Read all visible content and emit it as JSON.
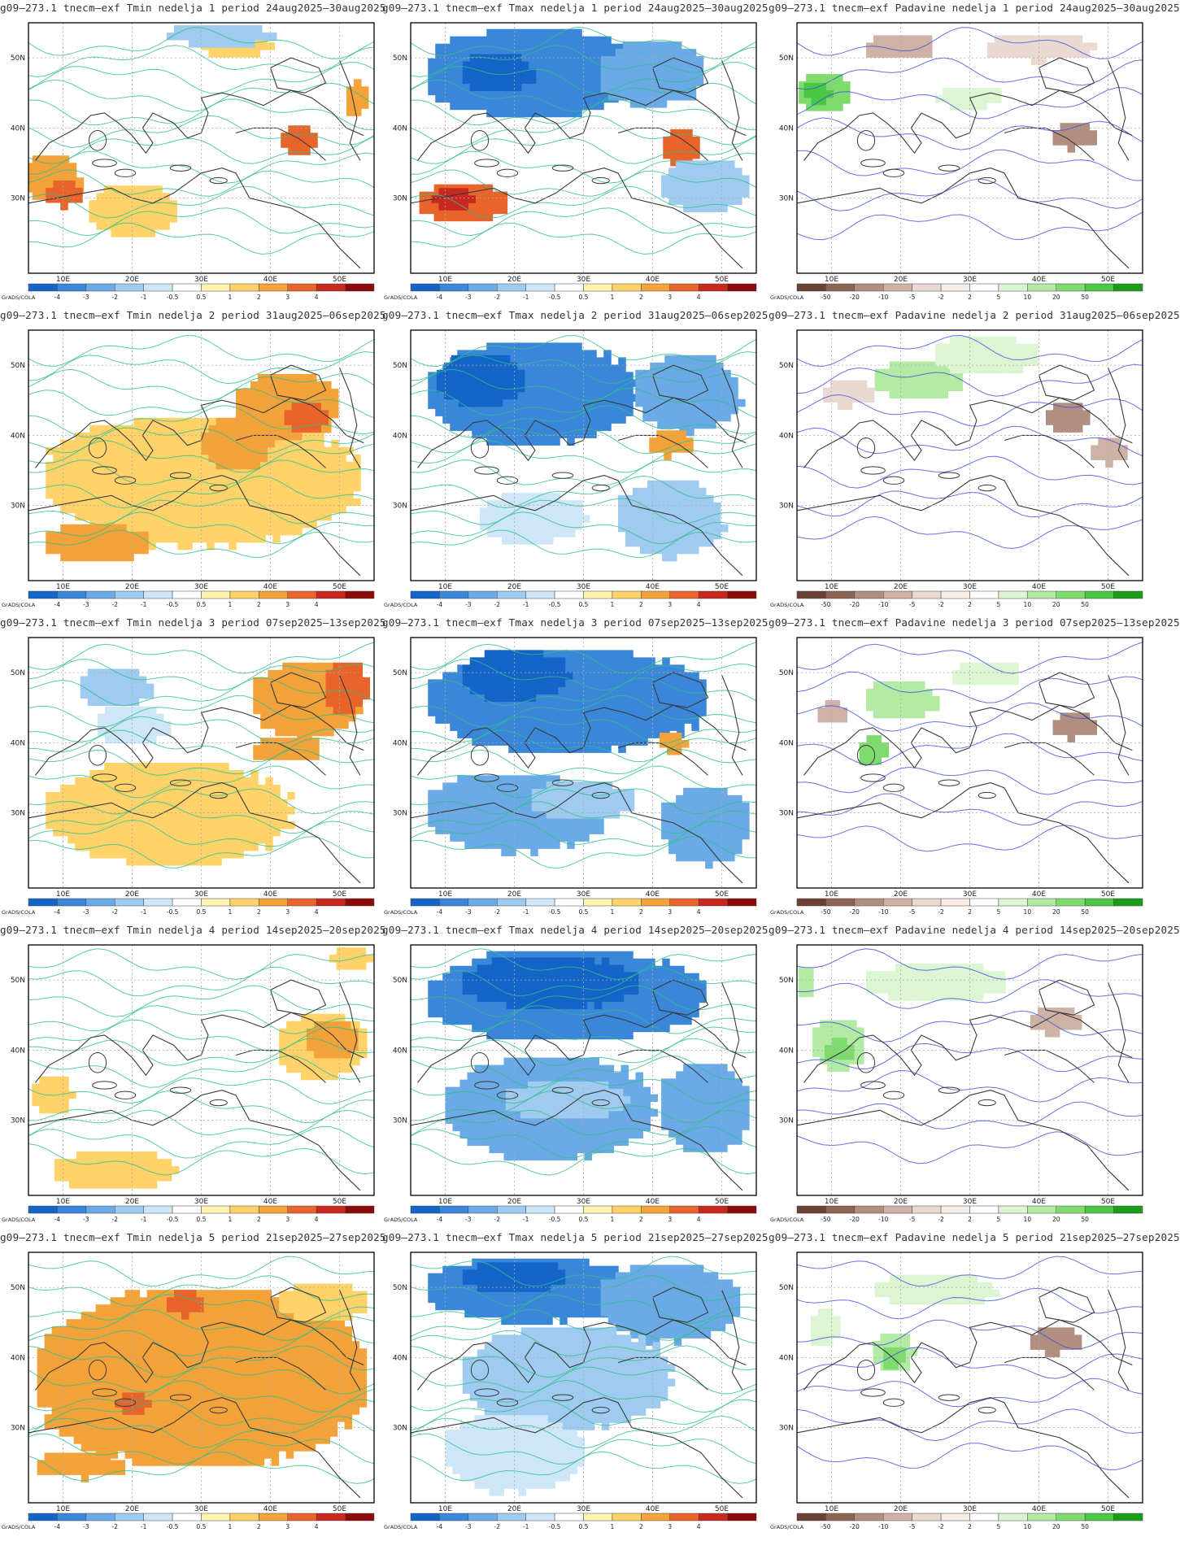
{
  "graphics_label": "GrADS/COLA",
  "lat_labels": [
    "50N",
    "40N",
    "30N"
  ],
  "lon_labels": [
    "10E",
    "20E",
    "30E",
    "40E",
    "50E"
  ],
  "colorbars": {
    "temp": {
      "labels": [
        "-4",
        "-3",
        "-2",
        "-1",
        "-0.5",
        "0.5",
        "1",
        "2",
        "3",
        "4"
      ],
      "colors": [
        "#1565c8",
        "#3a86d9",
        "#6aaae6",
        "#9fcbf0",
        "#cde6f8",
        "#ffffff",
        "#fff3b0",
        "#ffd36a",
        "#f3a33a",
        "#e8642a",
        "#c9281e",
        "#8b0a0a"
      ]
    },
    "precip": {
      "labels": [
        "-50",
        "-20",
        "-10",
        "-5",
        "-2",
        "2",
        "5",
        "10",
        "20",
        "50"
      ],
      "colors": [
        "#6b4234",
        "#8e6453",
        "#b08f80",
        "#cfb2a6",
        "#ead9d0",
        "#f7ede6",
        "#ffffff",
        "#dcf5d3",
        "#b3eaa4",
        "#7fdb6e",
        "#4bc843",
        "#1a9e1a"
      ]
    }
  },
  "rows": [
    {
      "week": "1",
      "period": "24aug2025–30aug2025",
      "titles": [
        "g09–273.1  tnecm–exf  Tmin  nedelja  1  period  24aug2025–30aug2025",
        "g09–273.1  tnecm–exf  Tmax  nedelja  1  period  24aug2025–30aug2025",
        "g09–273.1  tnecm–exf  Padavine  nedelja  1  period  24aug2025–30aug2025"
      ]
    },
    {
      "week": "2",
      "period": "31aug2025–06sep2025",
      "titles": [
        "g09–273.1  tnecm–exf  Tmin  nedelja  2  period  31aug2025–06sep2025",
        "g09–273.1  tnecm–exf  Tmax  nedelja  2  period  31aug2025–06sep2025",
        "g09–273.1  tnecm–exf  Padavine  nedelja  2  period  31aug2025–06sep2025"
      ]
    },
    {
      "week": "3",
      "period": "07sep2025–13sep2025",
      "titles": [
        "g09–273.1  tnecm–exf  Tmin  nedelja  3  period  07sep2025–13sep2025",
        "g09–273.1  tnecm–exf  Tmax  nedelja  3  period  07sep2025–13sep2025",
        "g09–273.1  tnecm–exf  Padavine  nedelja  3  period  07sep2025–13sep2025"
      ]
    },
    {
      "week": "4",
      "period": "14sep2025–20sep2025",
      "titles": [
        "g09–273.1  tnecm–exf  Tmin  nedelja  4  period  14sep2025–20sep2025",
        "g09–273.1  tnecm–exf  Tmax  nedelja  4  period  14sep2025–20sep2025",
        "g09–273.1  tnecm–exf  Padavine  nedelja  4  period  14sep2025–20sep2025"
      ]
    },
    {
      "week": "5",
      "period": "21sep2025–27sep2025",
      "titles": [
        "g09–273.1  tnecm–exf  Tmin  nedelja  5  period  21sep2025–27sep2025",
        "g09–273.1  tnecm–exf  Tmax  nedelja  5  period  21sep2025–27sep2025",
        "g09–273.1  tnecm–exf  Padavine  nedelja  5  period  21sep2025–27sep2025"
      ]
    }
  ],
  "anomaly_blobs": {
    "tmin": [
      [
        [
          "#f3a33a",
          0.07,
          0.62,
          0.16,
          0.18
        ],
        [
          "#e8642a",
          0.1,
          0.68,
          0.1,
          0.1
        ],
        [
          "#ffd36a",
          0.3,
          0.75,
          0.25,
          0.2
        ],
        [
          "#ffd36a",
          0.6,
          0.08,
          0.2,
          0.12
        ],
        [
          "#e8642a",
          0.78,
          0.47,
          0.1,
          0.12
        ],
        [
          "#f3a33a",
          0.95,
          0.3,
          0.06,
          0.15
        ],
        [
          "#9fcbf0",
          0.55,
          0.05,
          0.3,
          0.08
        ]
      ],
      [
        [
          "#ffd36a",
          0.5,
          0.6,
          0.9,
          0.5
        ],
        [
          "#f3a33a",
          0.75,
          0.3,
          0.3,
          0.25
        ],
        [
          "#e8642a",
          0.8,
          0.35,
          0.12,
          0.12
        ],
        [
          "#f3a33a",
          0.2,
          0.85,
          0.3,
          0.15
        ],
        [
          "#f3a33a",
          0.6,
          0.45,
          0.2,
          0.2
        ]
      ],
      [
        [
          "#ffd36a",
          0.4,
          0.7,
          0.7,
          0.4
        ],
        [
          "#f3a33a",
          0.8,
          0.25,
          0.3,
          0.3
        ],
        [
          "#e8642a",
          0.92,
          0.2,
          0.12,
          0.2
        ],
        [
          "#9fcbf0",
          0.25,
          0.2,
          0.2,
          0.15
        ],
        [
          "#cde6f8",
          0.3,
          0.35,
          0.2,
          0.15
        ],
        [
          "#f3a33a",
          0.75,
          0.45,
          0.2,
          0.1
        ]
      ],
      [
        [
          "#ffd36a",
          0.85,
          0.4,
          0.25,
          0.25
        ],
        [
          "#f3a33a",
          0.88,
          0.38,
          0.15,
          0.15
        ],
        [
          "#ffd36a",
          0.25,
          0.9,
          0.35,
          0.15
        ],
        [
          "#ffd36a",
          0.07,
          0.6,
          0.12,
          0.15
        ],
        [
          "#ffd36a",
          0.93,
          0.05,
          0.12,
          0.08
        ]
      ],
      [
        [
          "#f3a33a",
          0.5,
          0.5,
          0.95,
          0.7
        ],
        [
          "#e8642a",
          0.45,
          0.2,
          0.1,
          0.1
        ],
        [
          "#e8642a",
          0.3,
          0.6,
          0.1,
          0.08
        ],
        [
          "#ffd36a",
          0.85,
          0.2,
          0.25,
          0.15
        ],
        [
          "#f3a33a",
          0.15,
          0.85,
          0.25,
          0.1
        ]
      ]
    ],
    "tmax": [
      [
        [
          "#3a86d9",
          0.35,
          0.2,
          0.6,
          0.35
        ],
        [
          "#1565c8",
          0.25,
          0.2,
          0.2,
          0.15
        ],
        [
          "#6aaae6",
          0.7,
          0.2,
          0.3,
          0.25
        ],
        [
          "#e8642a",
          0.15,
          0.72,
          0.25,
          0.15
        ],
        [
          "#c9281e",
          0.12,
          0.7,
          0.12,
          0.08
        ],
        [
          "#e8642a",
          0.78,
          0.5,
          0.1,
          0.15
        ],
        [
          "#9fcbf0",
          0.85,
          0.65,
          0.25,
          0.2
        ]
      ],
      [
        [
          "#3a86d9",
          0.35,
          0.25,
          0.6,
          0.4
        ],
        [
          "#1565c8",
          0.2,
          0.2,
          0.25,
          0.2
        ],
        [
          "#6aaae6",
          0.8,
          0.25,
          0.3,
          0.3
        ],
        [
          "#f3a33a",
          0.75,
          0.45,
          0.12,
          0.1
        ],
        [
          "#9fcbf0",
          0.75,
          0.75,
          0.3,
          0.3
        ],
        [
          "#cde6f8",
          0.35,
          0.75,
          0.3,
          0.2
        ]
      ],
      [
        [
          "#3a86d9",
          0.45,
          0.25,
          0.8,
          0.4
        ],
        [
          "#1565c8",
          0.3,
          0.15,
          0.3,
          0.2
        ],
        [
          "#6aaae6",
          0.3,
          0.7,
          0.5,
          0.3
        ],
        [
          "#9fcbf0",
          0.5,
          0.65,
          0.3,
          0.15
        ],
        [
          "#f3a33a",
          0.76,
          0.42,
          0.08,
          0.08
        ],
        [
          "#6aaae6",
          0.85,
          0.75,
          0.25,
          0.3
        ]
      ],
      [
        [
          "#3a86d9",
          0.45,
          0.2,
          0.8,
          0.35
        ],
        [
          "#1565c8",
          0.4,
          0.15,
          0.5,
          0.2
        ],
        [
          "#6aaae6",
          0.4,
          0.65,
          0.6,
          0.4
        ],
        [
          "#9fcbf0",
          0.45,
          0.62,
          0.35,
          0.15
        ],
        [
          "#6aaae6",
          0.85,
          0.65,
          0.25,
          0.35
        ]
      ],
      [
        [
          "#3a86d9",
          0.35,
          0.15,
          0.6,
          0.25
        ],
        [
          "#1565c8",
          0.3,
          0.1,
          0.3,
          0.12
        ],
        [
          "#6aaae6",
          0.75,
          0.2,
          0.4,
          0.3
        ],
        [
          "#9fcbf0",
          0.45,
          0.5,
          0.6,
          0.4
        ],
        [
          "#cde6f8",
          0.3,
          0.8,
          0.4,
          0.3
        ]
      ]
    ],
    "precip": [
      [
        [
          "#7fdb6e",
          0.08,
          0.28,
          0.15,
          0.15
        ],
        [
          "#4bc843",
          0.06,
          0.28,
          0.08,
          0.08
        ],
        [
          "#cfb2a6",
          0.3,
          0.1,
          0.2,
          0.1
        ],
        [
          "#b08f80",
          0.8,
          0.45,
          0.12,
          0.1
        ],
        [
          "#ead9d0",
          0.7,
          0.1,
          0.3,
          0.1
        ],
        [
          "#dcf5d3",
          0.5,
          0.3,
          0.2,
          0.08
        ]
      ],
      [
        [
          "#b3eaa4",
          0.35,
          0.2,
          0.25,
          0.15
        ],
        [
          "#dcf5d3",
          0.55,
          0.1,
          0.3,
          0.15
        ],
        [
          "#b08f80",
          0.78,
          0.35,
          0.12,
          0.12
        ],
        [
          "#cfb2a6",
          0.9,
          0.48,
          0.1,
          0.1
        ],
        [
          "#ead9d0",
          0.15,
          0.25,
          0.15,
          0.1
        ]
      ],
      [
        [
          "#b3eaa4",
          0.3,
          0.25,
          0.2,
          0.15
        ],
        [
          "#7fdb6e",
          0.22,
          0.45,
          0.08,
          0.12
        ],
        [
          "#b08f80",
          0.8,
          0.35,
          0.12,
          0.1
        ],
        [
          "#dcf5d3",
          0.55,
          0.15,
          0.2,
          0.1
        ],
        [
          "#cfb2a6",
          0.1,
          0.3,
          0.08,
          0.1
        ]
      ],
      [
        [
          "#b3eaa4",
          0.12,
          0.4,
          0.15,
          0.2
        ],
        [
          "#7fdb6e",
          0.12,
          0.42,
          0.08,
          0.1
        ],
        [
          "#dcf5d3",
          0.4,
          0.15,
          0.4,
          0.15
        ],
        [
          "#cfb2a6",
          0.75,
          0.3,
          0.15,
          0.1
        ],
        [
          "#b3eaa4",
          0.03,
          0.15,
          0.05,
          0.12
        ]
      ],
      [
        [
          "#b3eaa4",
          0.28,
          0.4,
          0.12,
          0.15
        ],
        [
          "#7fdb6e",
          0.28,
          0.42,
          0.06,
          0.08
        ],
        [
          "#dcf5d3",
          0.4,
          0.15,
          0.35,
          0.12
        ],
        [
          "#b08f80",
          0.75,
          0.35,
          0.15,
          0.1
        ],
        [
          "#dcf5d3",
          0.08,
          0.3,
          0.08,
          0.15
        ]
      ]
    ]
  }
}
